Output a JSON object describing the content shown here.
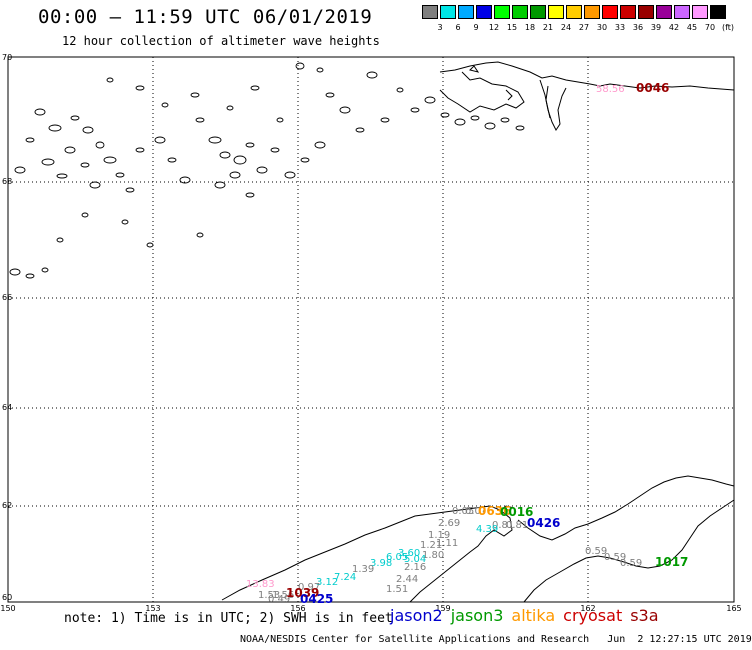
{
  "header": {
    "title": "00:00 – 11:59 UTC 06/01/2019",
    "subtitle": "12 hour collection of altimeter wave heights"
  },
  "colorbar": {
    "colors": [
      "#7f7f7f",
      "#00e6e6",
      "#00aaff",
      "#0000e6",
      "#00ff00",
      "#00cc00",
      "#009900",
      "#ffff00",
      "#ffcc00",
      "#ff9900",
      "#ff0000",
      "#cc0000",
      "#990000",
      "#990099",
      "#cc66ff",
      "#ff99ff",
      "#000000"
    ],
    "labels": [
      "3",
      "6",
      "9",
      "12",
      "15",
      "18",
      "21",
      "24",
      "27",
      "30",
      "33",
      "36",
      "39",
      "42",
      "45",
      "70"
    ],
    "unit": "(ft)"
  },
  "map": {
    "lon_ticks": [
      "150",
      "153",
      "156",
      "159",
      "162",
      "165"
    ],
    "lat_ticks": [
      "70",
      "68",
      "66",
      "64",
      "62",
      "60"
    ],
    "observations": [
      {
        "text": "58.56",
        "color": "#ff99cc"
      },
      {
        "text": "0046",
        "color": "#990000"
      },
      {
        "text": "0.05",
        "color": "#7f7f7f"
      },
      {
        "text": "0.0?",
        "color": "#7f7f7f"
      },
      {
        "text": "0636",
        "color": "#ff9900"
      },
      {
        "text": "0016",
        "color": "#009900"
      },
      {
        "text": "2.69",
        "color": "#7f7f7f"
      },
      {
        "text": "0.81",
        "color": "#7f7f7f"
      },
      {
        "text": "0.81",
        "color": "#7f7f7f"
      },
      {
        "text": "4.39",
        "color": "#00cccc"
      },
      {
        "text": "0426",
        "color": "#0000cc"
      },
      {
        "text": "1.19",
        "color": "#7f7f7f"
      },
      {
        "text": "1.11",
        "color": "#7f7f7f"
      },
      {
        "text": "1.21",
        "color": "#7f7f7f"
      },
      {
        "text": "1.80",
        "color": "#7f7f7f"
      },
      {
        "text": "5.04",
        "color": "#00cccc"
      },
      {
        "text": "3.60",
        "color": "#00cccc"
      },
      {
        "text": "6.05",
        "color": "#00cccc"
      },
      {
        "text": "3.98",
        "color": "#00cccc"
      },
      {
        "text": "2.16",
        "color": "#7f7f7f"
      },
      {
        "text": "1.39",
        "color": "#7f7f7f"
      },
      {
        "text": "7.24",
        "color": "#00cccc"
      },
      {
        "text": "2.44",
        "color": "#7f7f7f"
      },
      {
        "text": "3.12",
        "color": "#00cccc"
      },
      {
        "text": "1.51",
        "color": "#7f7f7f"
      },
      {
        "text": "0.97",
        "color": "#7f7f7f"
      },
      {
        "text": "1.53",
        "color": "#7f7f7f"
      },
      {
        "text": "1.56",
        "color": "#7f7f7f"
      },
      {
        "text": "0.49",
        "color": "#7f7f7f"
      },
      {
        "text": "1039",
        "color": "#990000"
      },
      {
        "text": "0425",
        "color": "#0000cc"
      },
      {
        "text": "13.83",
        "color": "#ff99cc"
      },
      {
        "text": "0.59",
        "color": "#7f7f7f"
      },
      {
        "text": "0.59",
        "color": "#7f7f7f"
      },
      {
        "text": "0.59",
        "color": "#7f7f7f"
      },
      {
        "text": "1017",
        "color": "#009900"
      }
    ]
  },
  "footer": {
    "note": "note: 1) Time is in UTC; 2) SWH is in feet",
    "legend": [
      {
        "label": "jason2",
        "color": "#0000cc"
      },
      {
        "label": "jason3",
        "color": "#009900"
      },
      {
        "label": "altika",
        "color": "#ff9900"
      },
      {
        "label": "cryosat",
        "color": "#cc0000"
      },
      {
        "label": "s3a",
        "color": "#990000"
      }
    ],
    "credit": "NOAA/NESDIS Center for Satellite Applications and Research   Jun  2 12:27:15 UTC 2019"
  }
}
